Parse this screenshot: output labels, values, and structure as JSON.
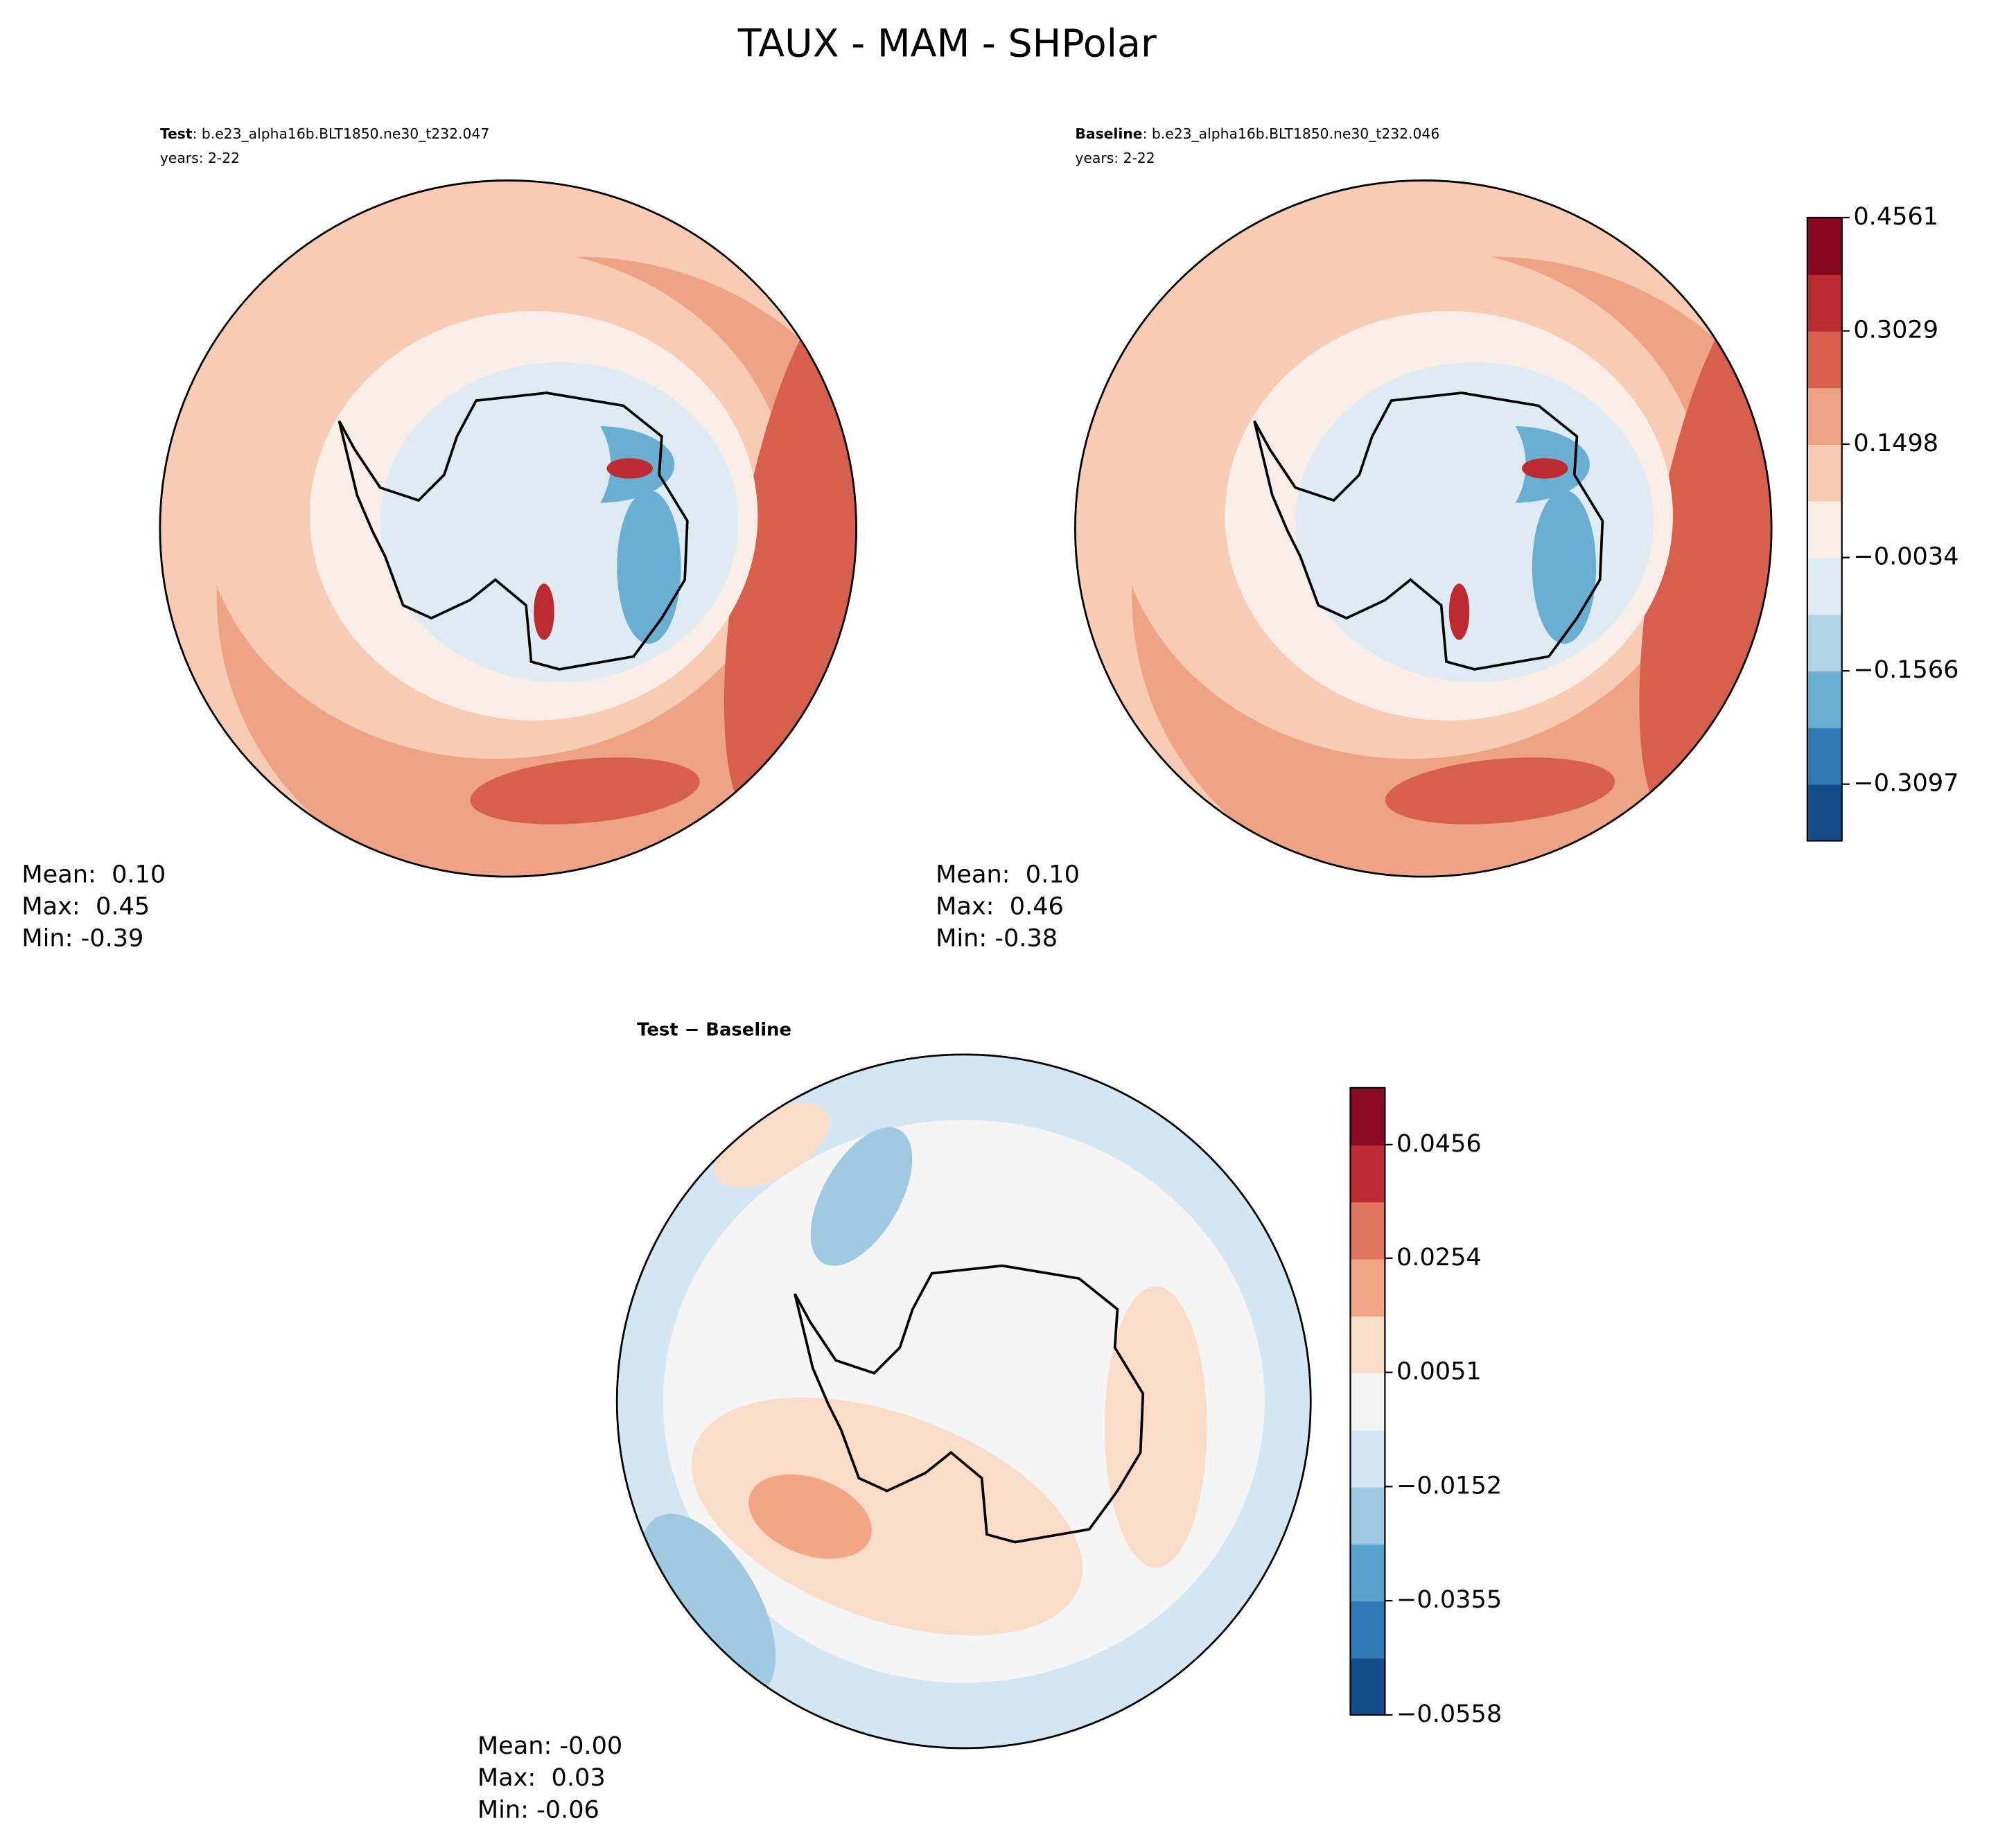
{
  "suptitle": "TAUX - MAM - SHPolar",
  "chart_data": [
    {
      "type": "polar-contour",
      "run_label": "Test",
      "title": ": b.e23_alpha16b.BLT1850.ne30_t232.047",
      "subtitle": "years: 2-22",
      "stats": [
        "Mean:  0.10",
        "Max:  0.45",
        "Min: -0.39"
      ]
    },
    {
      "type": "polar-contour",
      "run_label": "Baseline",
      "title": ": b.e23_alpha16b.BLT1850.ne30_t232.046",
      "subtitle": "years: 2-22",
      "stats": [
        "Mean:  0.10",
        "Max:  0.46",
        "Min: -0.38"
      ],
      "colorbar": {
        "clim": [
          -0.3863,
          0.4561
        ],
        "ticks": [
          {
            "value": -0.3097,
            "label": "−0.3097"
          },
          {
            "value": -0.1566,
            "label": "−0.1566"
          },
          {
            "value": -0.0034,
            "label": "−0.0034"
          },
          0.1498,
          0.3029,
          0.4561
        ],
        "colors": [
          "#134c88",
          "#2f79b5",
          "#6aaed1",
          "#b0d4e6",
          "#dfebf2",
          "#f8ede7",
          "#f8cbb4",
          "#eda384",
          "#d6604d",
          "#bc2a32",
          "#85081f"
        ]
      }
    },
    {
      "type": "polar-contour",
      "title": "Test − Baseline",
      "stats": [
        "Mean: -0.00",
        "Max:  0.03",
        "Min: -0.06"
      ],
      "colorbar": {
        "clim": [
          -0.0558,
          0.0557
        ],
        "ticks": [
          {
            "value": -0.0558,
            "label": "−0.0558"
          },
          {
            "value": -0.0355,
            "label": "−0.0355"
          },
          {
            "value": -0.0152,
            "label": "−0.0152"
          },
          0.0051,
          0.0254,
          0.0456
        ],
        "colors": [
          "#134e8b",
          "#2f79b5",
          "#58a2cd",
          "#9fcae1",
          "#d4e6f1",
          "#f5f5f5",
          "#fbdcc9",
          "#f3a683",
          "#e07560",
          "#bd2b35",
          "#8a0c22"
        ]
      }
    }
  ]
}
